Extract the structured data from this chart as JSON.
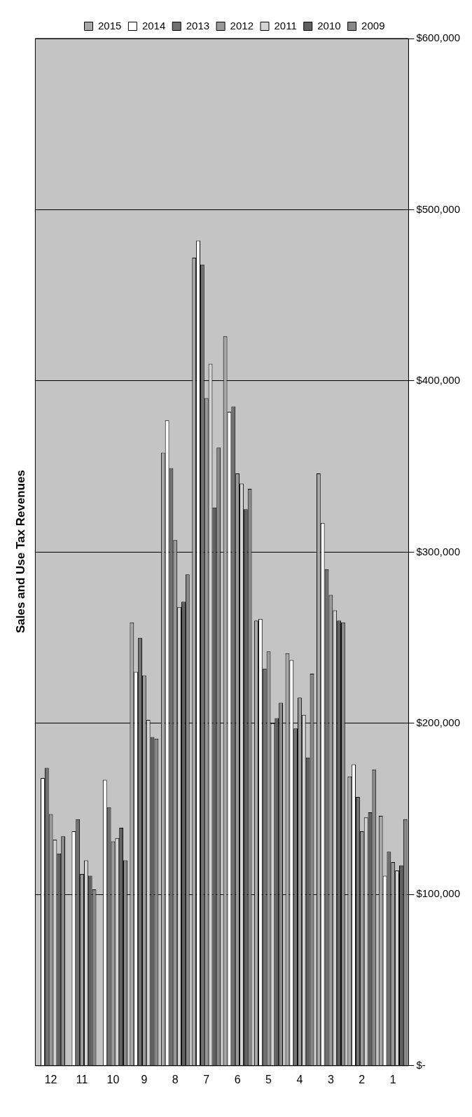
{
  "chart_data": {
    "type": "bar",
    "title": "Sales and Use Tax Revenues",
    "categories": [
      "12",
      "11",
      "10",
      "9",
      "8",
      "7",
      "6",
      "5",
      "4",
      "3",
      "2",
      "1"
    ],
    "series": [
      {
        "name": "2015",
        "color": "#a8a8a8",
        "values": [
          null,
          null,
          null,
          259000,
          358000,
          472000,
          426000,
          260000,
          241000,
          346000,
          169000,
          146000
        ]
      },
      {
        "name": "2014",
        "color": "#ffffff",
        "values": [
          168000,
          137000,
          167000,
          230000,
          377000,
          482000,
          382000,
          261000,
          237000,
          317000,
          176000,
          111000
        ]
      },
      {
        "name": "2013",
        "color": "#707070",
        "values": [
          174000,
          144000,
          151000,
          250000,
          349000,
          468000,
          385000,
          232000,
          197000,
          290000,
          157000,
          125000
        ]
      },
      {
        "name": "2012",
        "color": "#9a9a9a",
        "values": [
          147000,
          112000,
          131000,
          228000,
          307000,
          390000,
          346000,
          242000,
          215000,
          275000,
          137000,
          119000
        ]
      },
      {
        "name": "2011",
        "color": "#d4d4d4",
        "values": [
          132000,
          120000,
          133000,
          202000,
          268000,
          410000,
          340000,
          200000,
          205000,
          266000,
          145000,
          114000
        ]
      },
      {
        "name": "2010",
        "color": "#606060",
        "values": [
          124000,
          111000,
          139000,
          192000,
          271000,
          326000,
          325000,
          203000,
          180000,
          260000,
          148000,
          117000
        ]
      },
      {
        "name": "2009",
        "color": "#888888",
        "values": [
          134000,
          103000,
          120000,
          191000,
          287000,
          361000,
          337000,
          212000,
          229000,
          259000,
          173000,
          144000
        ]
      }
    ],
    "ylim": [
      0,
      600000
    ],
    "yticks": [
      {
        "value": 0,
        "label": "$-"
      },
      {
        "value": 100000,
        "label": "$100,000"
      },
      {
        "value": 200000,
        "label": "$200,000"
      },
      {
        "value": 300000,
        "label": "$300,000"
      },
      {
        "value": 400000,
        "label": "$400,000"
      },
      {
        "value": 500000,
        "label": "$500,000"
      },
      {
        "value": 600000,
        "label": "$600,000"
      }
    ],
    "grid": "y",
    "legend": "top"
  }
}
